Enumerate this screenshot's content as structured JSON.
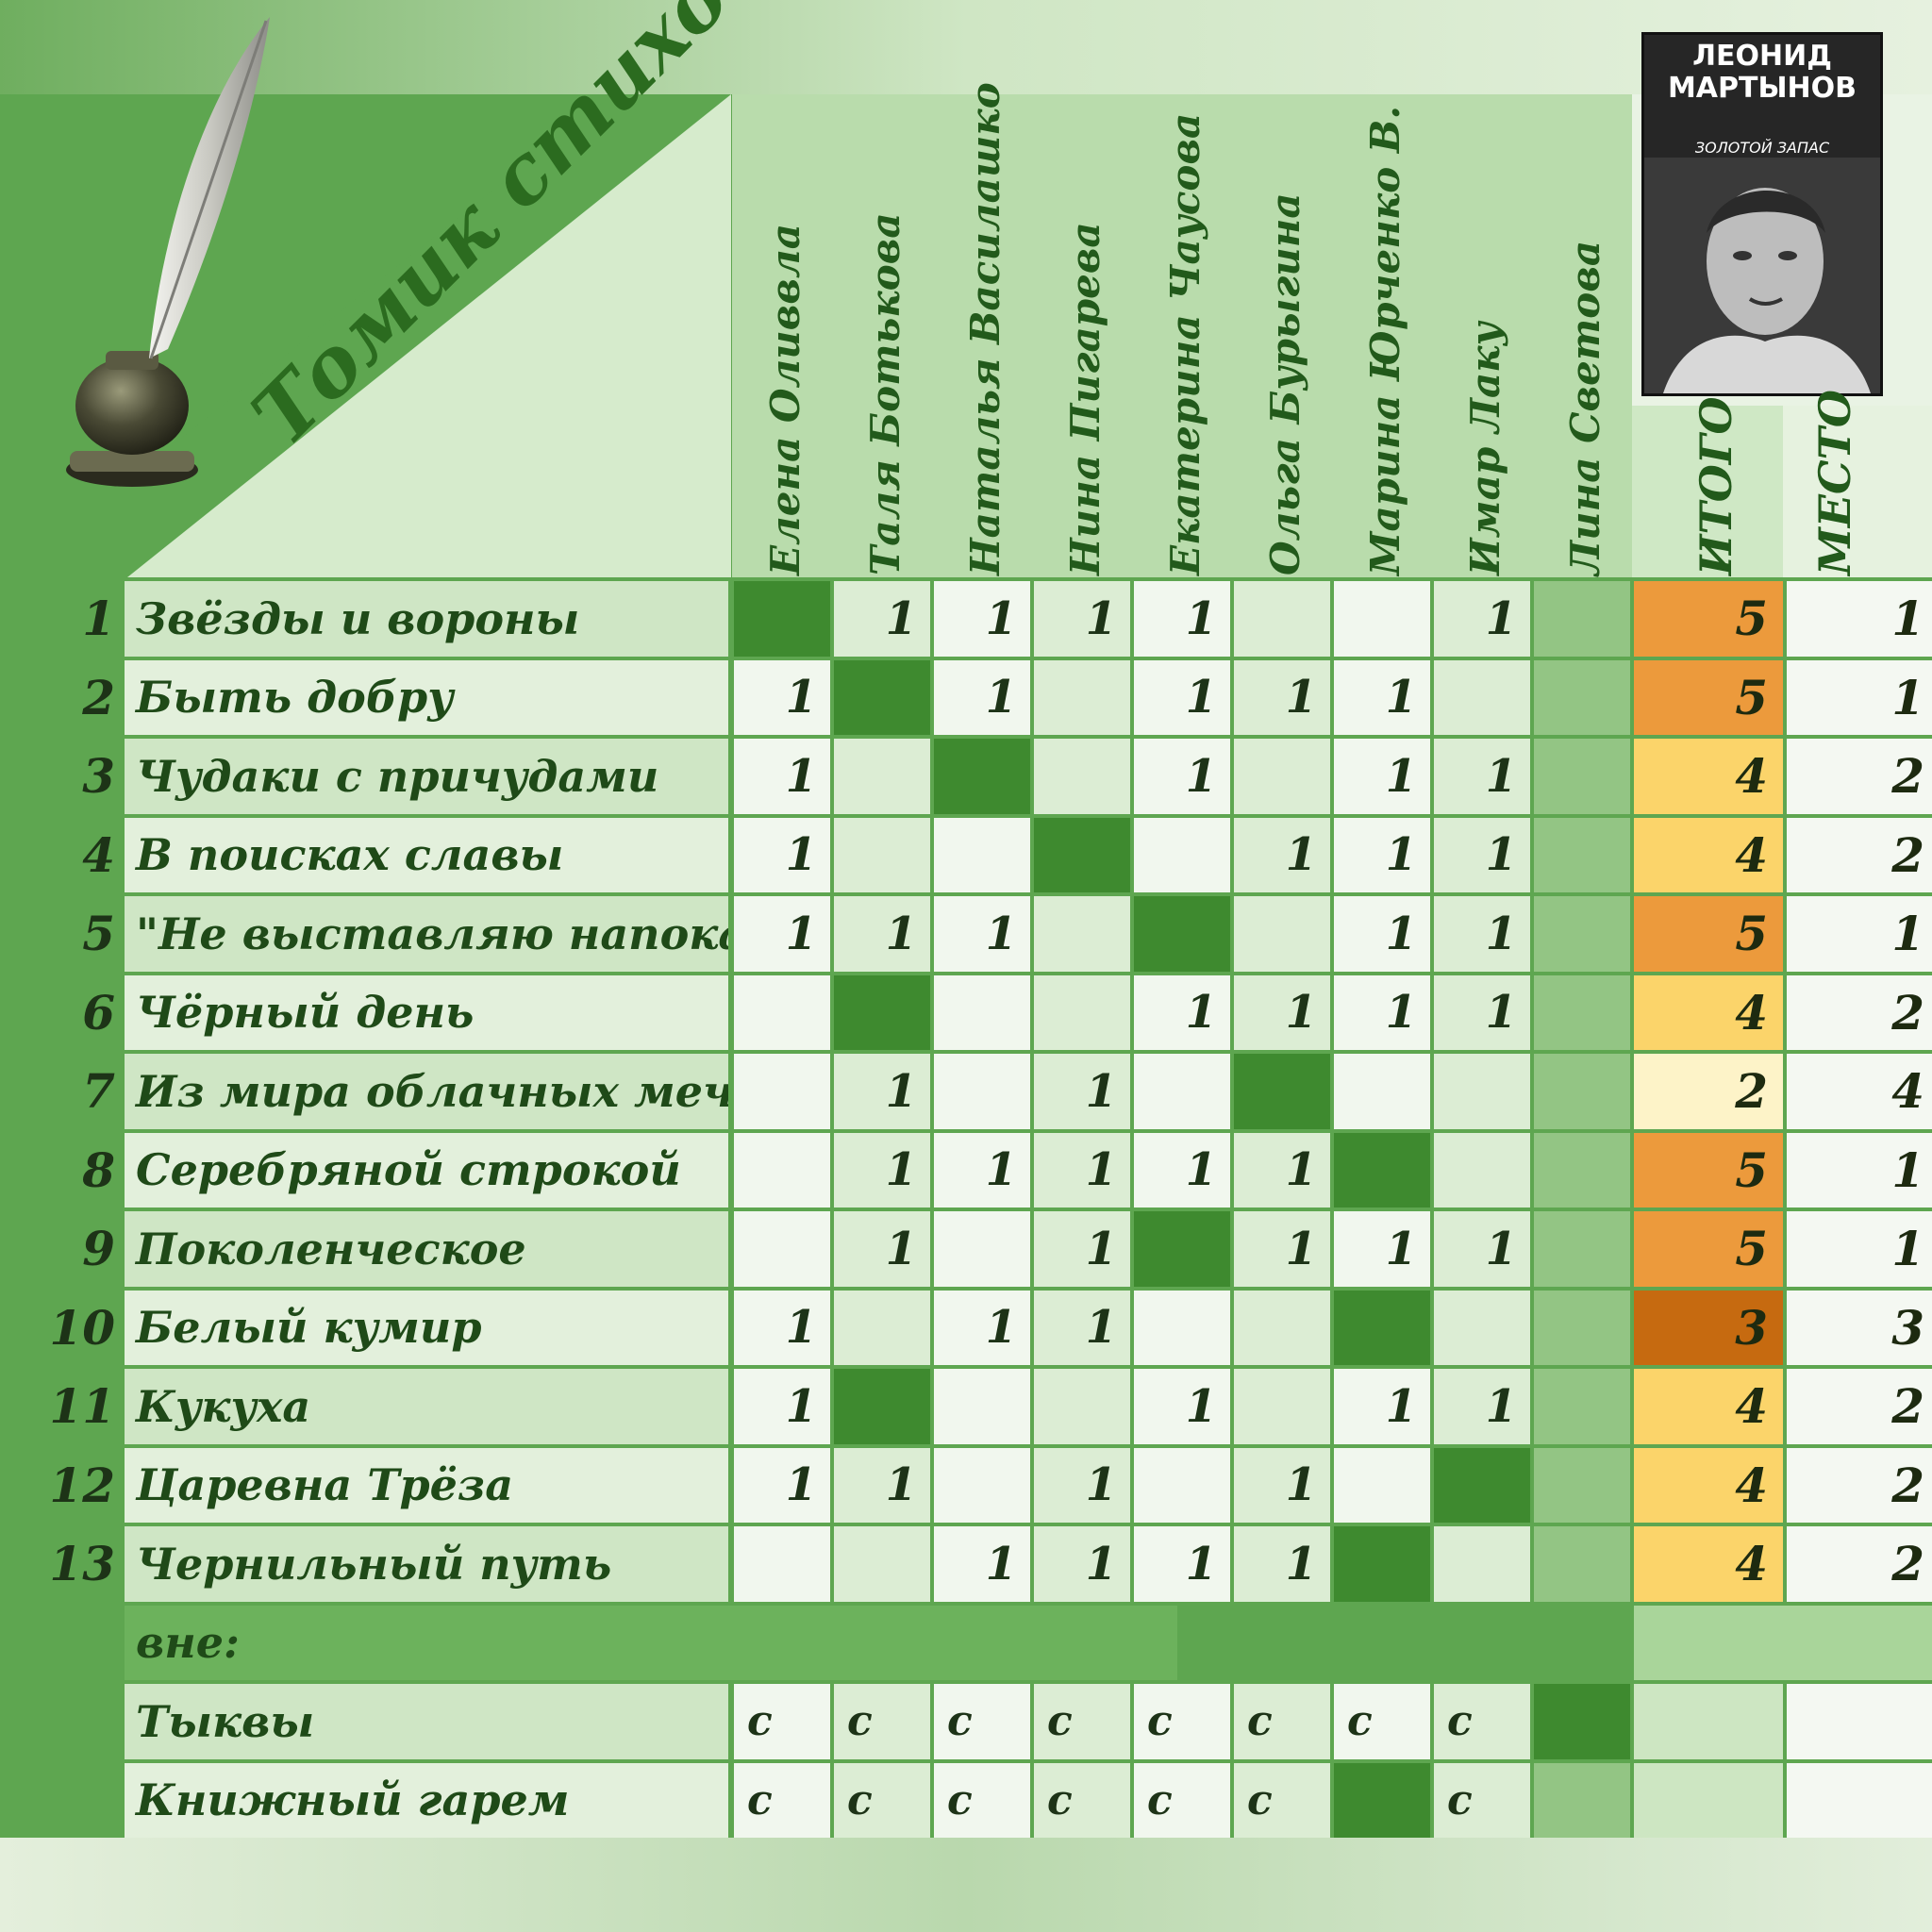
{
  "table_title": "Томик стихов",
  "book": {
    "author": "ЛЕОНИД МАРТЫНОВ",
    "series": "ЗОЛОТОЙ ЗАПАС"
  },
  "colors": {
    "background_green": "#5ea650",
    "self_cell": "#3e8a2f",
    "side_column": "#93c584",
    "total_high": "#ec9a3c",
    "total_mid": "#fbd46a",
    "total_low": "#fdf3c8",
    "total_min": "#c66a10"
  },
  "chart_data": {
    "type": "table",
    "title": "Томик стихов",
    "columns": [
      "Елена Оливвла",
      "Таля Ботькова",
      "Наталья Василашко",
      "Нина Пигарева",
      "Екатерина Чаусова",
      "Ольга Бурыгина",
      "Марина Юрченко В.",
      "Имар Лаку",
      "Лина Светова"
    ],
    "total_header": "ИТОГО",
    "place_header": "МЕСТО",
    "rows": [
      {
        "num": "1",
        "title": "Звёзды и вороны",
        "self": 0,
        "votes": [
          "",
          "1",
          "1",
          "1",
          "1",
          "",
          "",
          "1",
          ""
        ],
        "total": "5",
        "place": "1",
        "shade": "high"
      },
      {
        "num": "2",
        "title": "Быть добру",
        "self": 1,
        "votes": [
          "1",
          "",
          "1",
          "",
          "1",
          "1",
          "1",
          "",
          ""
        ],
        "total": "5",
        "place": "1",
        "shade": "high"
      },
      {
        "num": "3",
        "title": "Чудаки с причудами",
        "self": 2,
        "votes": [
          "1",
          "",
          "",
          "",
          "1",
          "",
          "1",
          "1",
          ""
        ],
        "total": "4",
        "place": "2",
        "shade": "mid"
      },
      {
        "num": "4",
        "title": "В поисках славы",
        "self": 3,
        "votes": [
          "1",
          "",
          "",
          "",
          "",
          "1",
          "1",
          "1",
          ""
        ],
        "total": "4",
        "place": "2",
        "shade": "mid"
      },
      {
        "num": "5",
        "title": "\"Не выставляю напоказ\"",
        "self": 4,
        "votes": [
          "1",
          "1",
          "1",
          "",
          "",
          "",
          "1",
          "1",
          ""
        ],
        "total": "5",
        "place": "1",
        "shade": "high"
      },
      {
        "num": "6",
        "title": "Чёрный день",
        "self": 1,
        "votes": [
          "",
          "",
          "",
          "",
          "1",
          "1",
          "1",
          "1",
          ""
        ],
        "total": "4",
        "place": "2",
        "shade": "mid"
      },
      {
        "num": "7",
        "title": "Из мира облачных мечт.",
        "self": 5,
        "votes": [
          "",
          "1",
          "",
          "1",
          "",
          "",
          "",
          "",
          ""
        ],
        "total": "2",
        "place": "4",
        "shade": "low"
      },
      {
        "num": "8",
        "title": "Серебряной строкой",
        "self": 6,
        "votes": [
          "",
          "1",
          "1",
          "1",
          "1",
          "1",
          "",
          "",
          ""
        ],
        "total": "5",
        "place": "1",
        "shade": "high"
      },
      {
        "num": "9",
        "title": "Поколенческое",
        "self": 4,
        "votes": [
          "",
          "1",
          "",
          "1",
          "",
          "1",
          "1",
          "1",
          ""
        ],
        "total": "5",
        "place": "1",
        "shade": "high"
      },
      {
        "num": "10",
        "title": "Белый кумир",
        "self": 6,
        "votes": [
          "1",
          "",
          "1",
          "1",
          "",
          "",
          "",
          "",
          ""
        ],
        "total": "3",
        "place": "3",
        "shade": "min"
      },
      {
        "num": "11",
        "title": "Кукуха",
        "self": 1,
        "votes": [
          "1",
          "",
          "",
          "",
          "1",
          "",
          "1",
          "1",
          ""
        ],
        "total": "4",
        "place": "2",
        "shade": "mid"
      },
      {
        "num": "12",
        "title": "Царевна Трёза",
        "self": 7,
        "votes": [
          "1",
          "1",
          "",
          "1",
          "",
          "1",
          "",
          "",
          ""
        ],
        "total": "4",
        "place": "2",
        "shade": "mid"
      },
      {
        "num": "13",
        "title": "Чернильный путь",
        "self": 6,
        "votes": [
          "",
          "",
          "1",
          "1",
          "1",
          "1",
          "",
          "",
          ""
        ],
        "total": "4",
        "place": "2",
        "shade": "mid"
      }
    ],
    "outside_label": "вне:",
    "outside_rows": [
      {
        "title": "Тыквы",
        "self": 8,
        "votes": [
          "с",
          "с",
          "с",
          "с",
          "с",
          "с",
          "с",
          "с",
          ""
        ]
      },
      {
        "title": "Книжный гарем",
        "self": 6,
        "votes": [
          "с",
          "с",
          "с",
          "с",
          "с",
          "с",
          "",
          "с",
          ""
        ]
      }
    ]
  }
}
